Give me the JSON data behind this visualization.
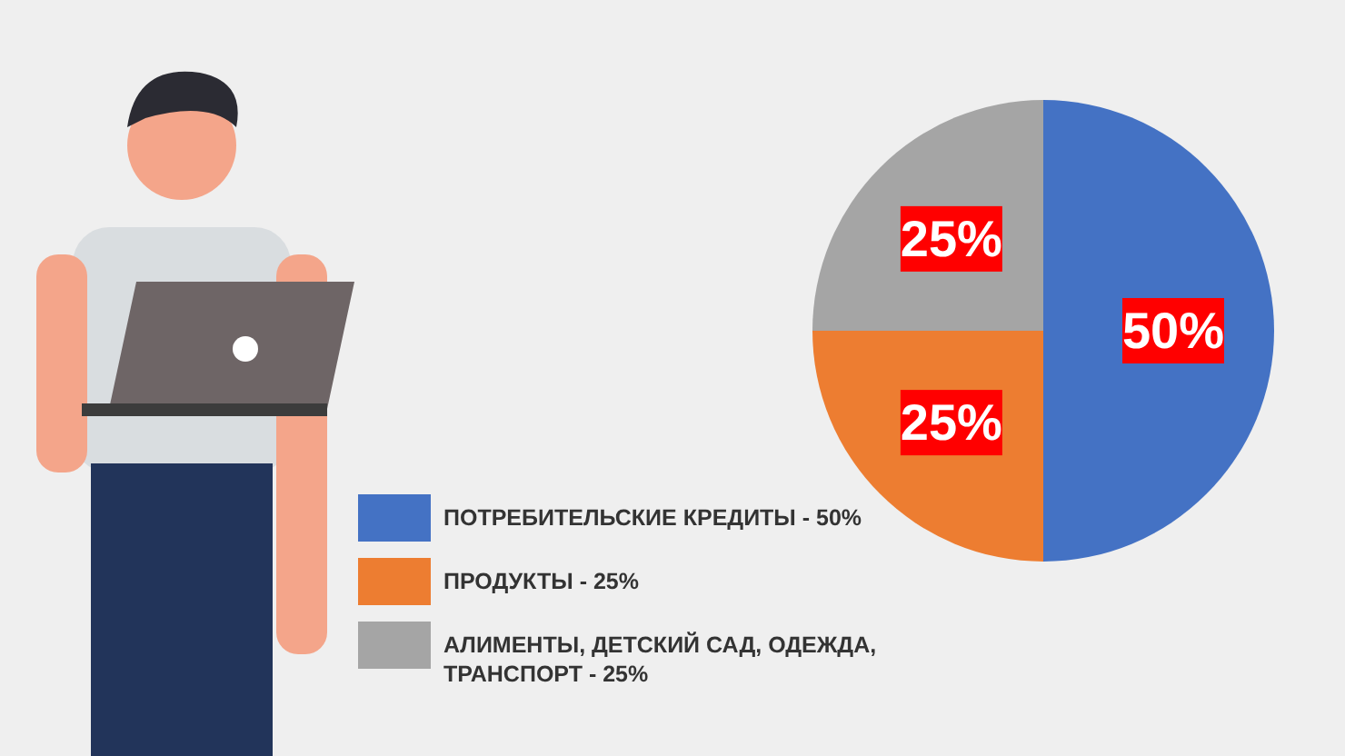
{
  "chart_data": {
    "type": "pie",
    "categories": [
      "ПОТРЕБИТЕЛЬСКИЕ КРЕДИТЫ - 50%",
      "ПРОДУКТЫ - 25%",
      "АЛИМЕНТЫ, ДЕТСКИЙ САД, ОДЕЖДА, ТРАНСПОРТ - 25%"
    ],
    "values": [
      50,
      25,
      25
    ],
    "colors": [
      "#4472c4",
      "#ed7d31",
      "#a5a5a5"
    ],
    "value_labels": [
      "50%",
      "25%",
      "25%"
    ],
    "legend": "bottom left"
  }
}
